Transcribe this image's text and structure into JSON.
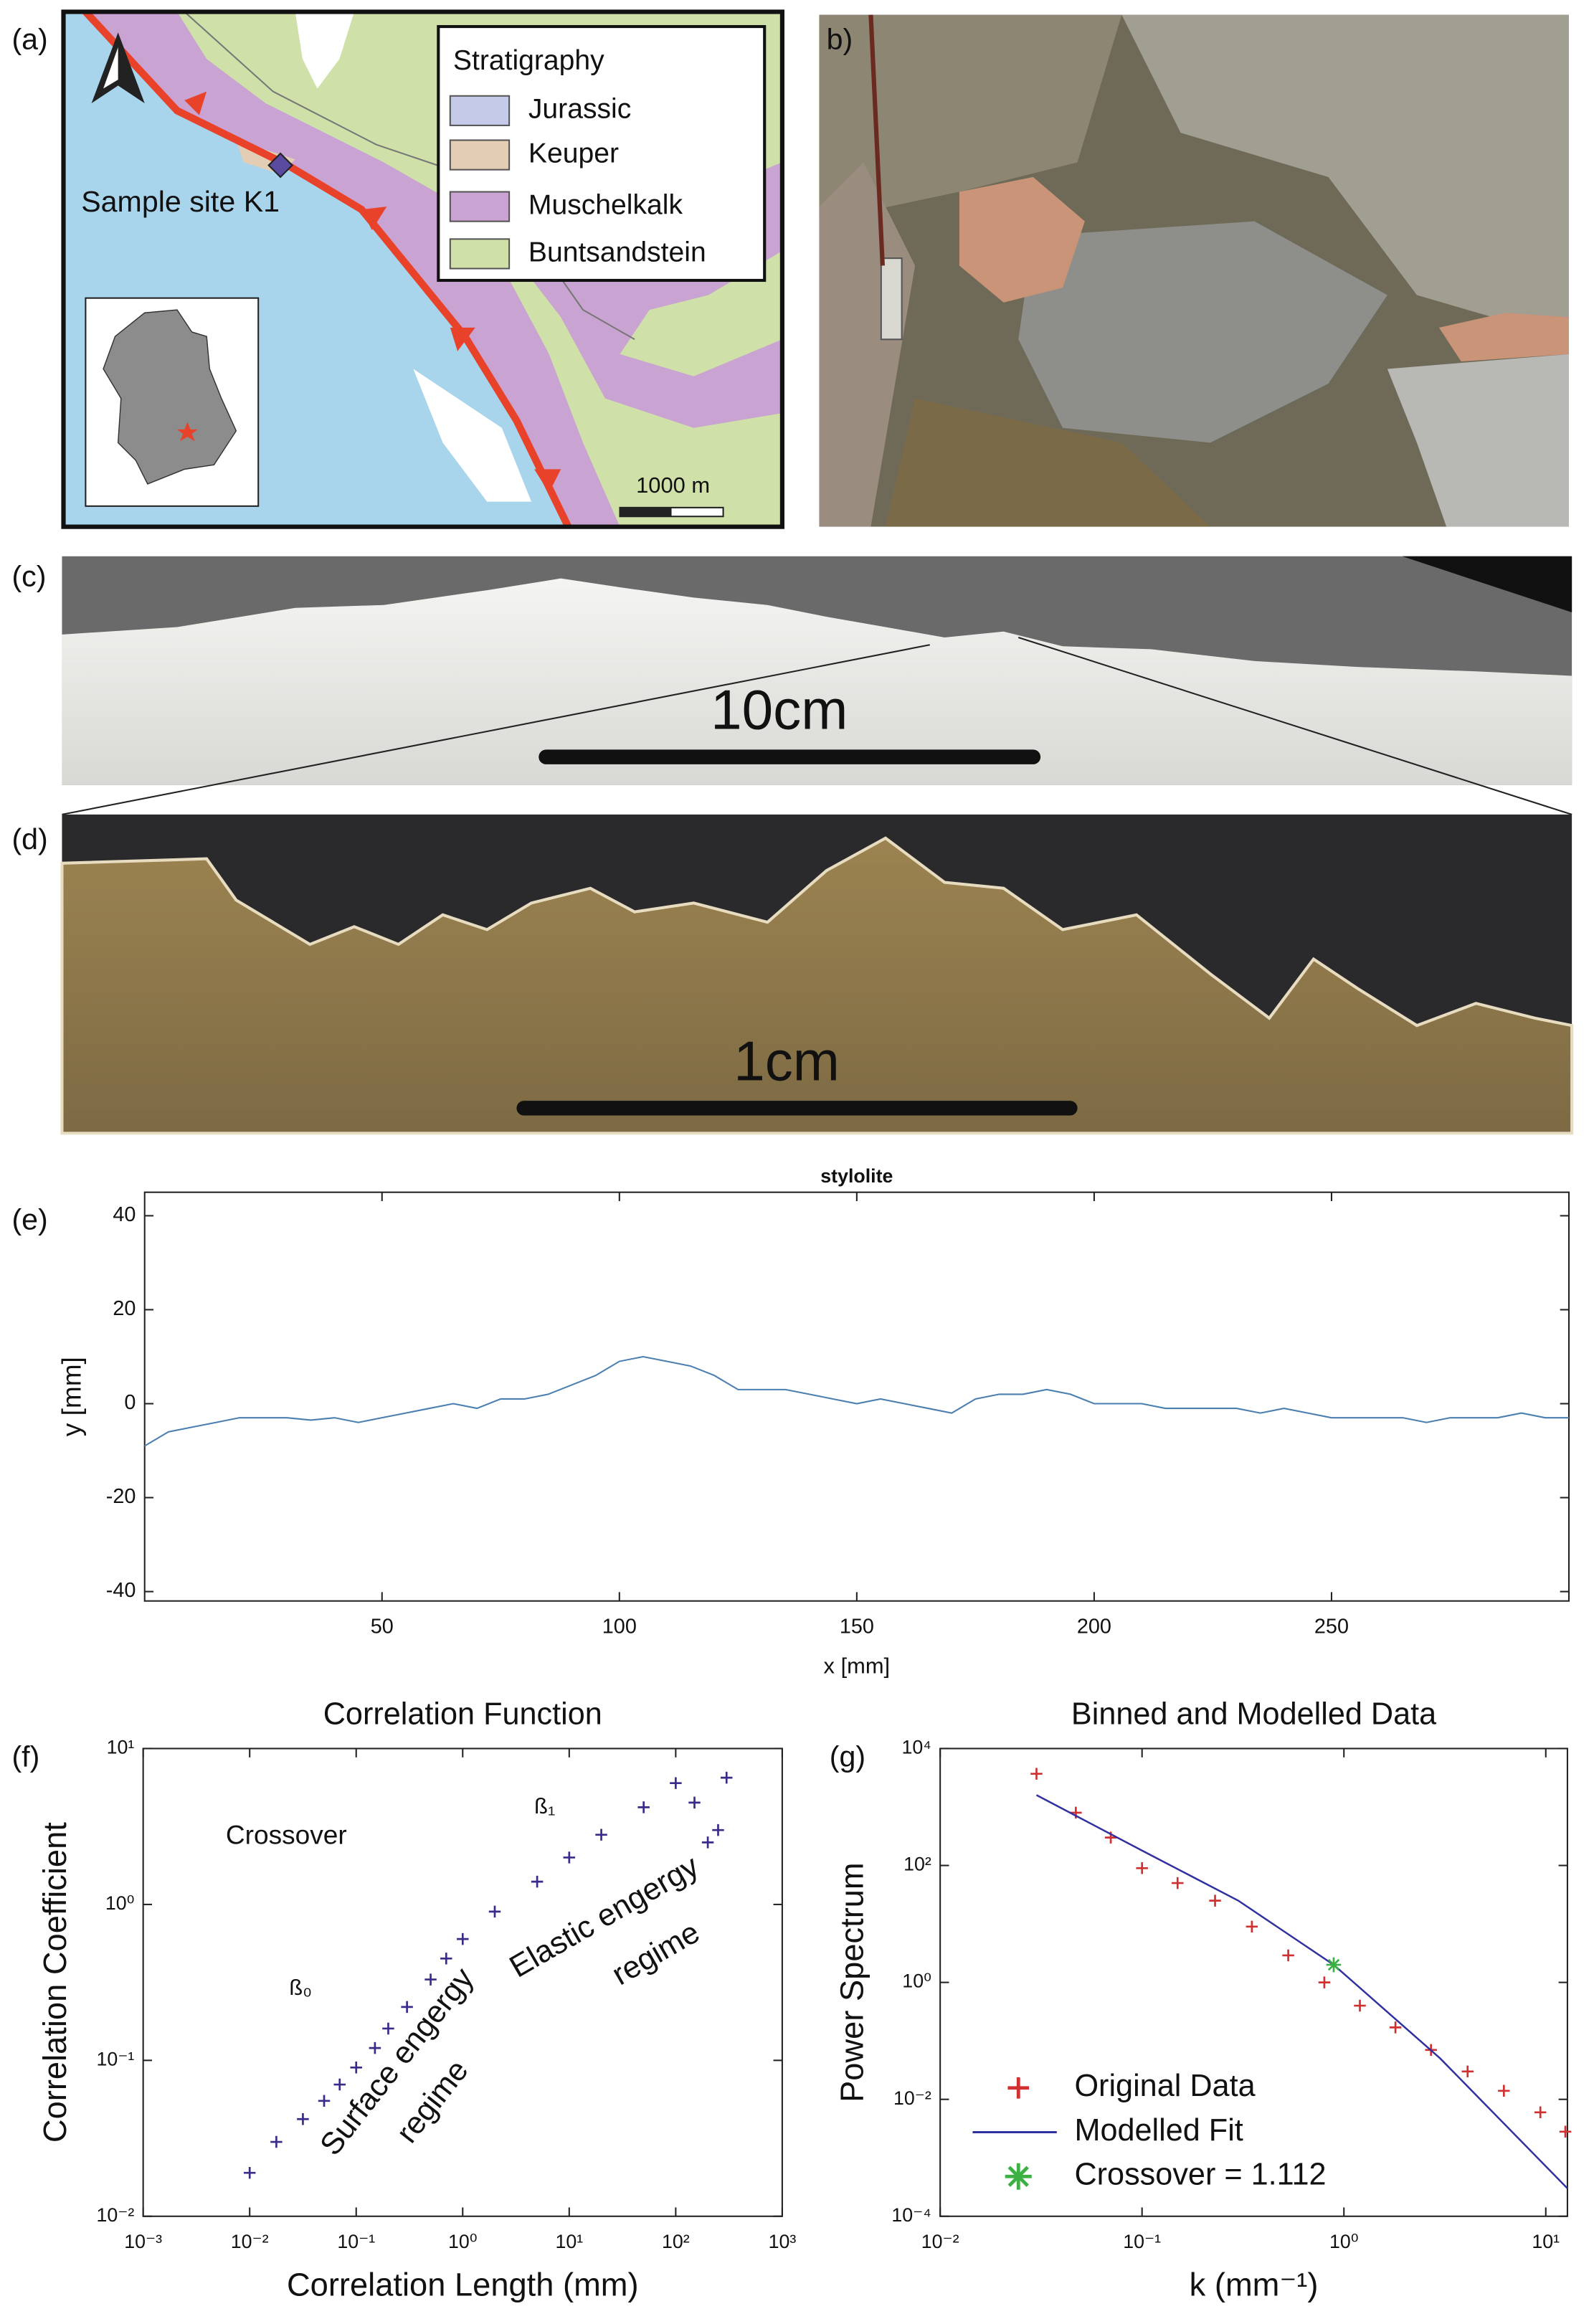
{
  "panels": {
    "a": {
      "label": "(a)",
      "legend_title": "Stratigraphy",
      "legend": [
        {
          "name": "Jurassic",
          "color": "#c5cae9"
        },
        {
          "name": "Keuper",
          "color": "#e3cdb4"
        },
        {
          "name": "Muschelkalk",
          "color": "#c9a3d1"
        },
        {
          "name": "Buntsandstein",
          "color": "#cfe0a8"
        }
      ],
      "site": "Sample site K1",
      "scale": "1000 m"
    },
    "b": {
      "label": "b)"
    },
    "c": {
      "label": "(c)",
      "scale": "10cm"
    },
    "d": {
      "label": "(d)",
      "scale": "1cm"
    },
    "e": {
      "label": "(e)"
    },
    "f": {
      "label": "(f)"
    },
    "g": {
      "label": "(g)"
    }
  },
  "chart_data": [
    {
      "type": "line",
      "title": "stylolite",
      "x_label": "x [mm]",
      "y_label": "y [mm]",
      "color": "#4a7fb0",
      "xlim": [
        0,
        300
      ],
      "ylim": [
        -42,
        45
      ],
      "xticks": [
        50,
        100,
        150,
        200,
        250
      ],
      "yticks": [
        -40,
        -20,
        0,
        20,
        40
      ],
      "x": [
        0,
        5,
        10,
        15,
        20,
        25,
        30,
        35,
        40,
        45,
        50,
        55,
        60,
        65,
        70,
        75,
        80,
        85,
        90,
        95,
        100,
        105,
        110,
        115,
        120,
        125,
        130,
        135,
        140,
        145,
        150,
        155,
        160,
        165,
        170,
        175,
        180,
        185,
        190,
        195,
        200,
        205,
        210,
        215,
        220,
        225,
        230,
        235,
        240,
        245,
        250,
        255,
        260,
        265,
        270,
        275,
        280,
        285,
        290,
        295,
        300
      ],
      "values": [
        -9,
        -6,
        -5,
        -4,
        -3,
        -3,
        -3,
        -3.5,
        -3,
        -4,
        -3,
        -2,
        -1,
        0,
        -1,
        1,
        1,
        2,
        4,
        6,
        9,
        10,
        9,
        8,
        6,
        3,
        3,
        3,
        2,
        1,
        0,
        1,
        0,
        -1,
        -2,
        1,
        2,
        2,
        3,
        2,
        0,
        0,
        0,
        -1,
        -1,
        -1,
        -1,
        -2,
        -1,
        -2,
        -3,
        -3,
        -3,
        -3,
        -4,
        -3,
        -3,
        -3,
        -2,
        -3,
        -3
      ]
    },
    {
      "type": "scatter",
      "title": "Correlation Function",
      "x_label": "Correlation Length (mm)",
      "y_label": "Correlation Coefficient",
      "xscale": "log",
      "yscale": "log",
      "color": "#3a2a8a",
      "marker": "+",
      "xlim": [
        0.001,
        1000
      ],
      "ylim": [
        0.01,
        10
      ],
      "xticks": [
        {
          "value": 0.001,
          "label": "10⁻³"
        },
        {
          "value": 0.01,
          "label": "10⁻²"
        },
        {
          "value": 0.1,
          "label": "10⁻¹"
        },
        {
          "value": 1,
          "label": "10⁰"
        },
        {
          "value": 10,
          "label": "10¹"
        },
        {
          "value": 100,
          "label": "10²"
        },
        {
          "value": 1000,
          "label": "10³"
        }
      ],
      "yticks": [
        {
          "value": 0.01,
          "label": "10⁻²"
        },
        {
          "value": 0.1,
          "label": "10⁻¹"
        },
        {
          "value": 1,
          "label": "10⁰"
        },
        {
          "value": 10,
          "label": "10¹"
        }
      ],
      "x": [
        0.01,
        0.0178,
        0.0316,
        0.05,
        0.07,
        0.1,
        0.15,
        0.2,
        0.3,
        0.5,
        0.7,
        1,
        2,
        5,
        10,
        20,
        50,
        100,
        150,
        200,
        250,
        300
      ],
      "values": [
        0.019,
        0.03,
        0.042,
        0.055,
        0.07,
        0.09,
        0.12,
        0.16,
        0.22,
        0.33,
        0.45,
        0.6,
        0.9,
        1.4,
        2,
        2.8,
        4.2,
        6,
        4.5,
        2.5,
        3,
        6.5
      ],
      "annotations": [
        "Crossover",
        "ß₁",
        "ß₀",
        "Elastic engergy",
        "regime",
        "Surface engergy",
        "regime"
      ]
    },
    {
      "type": "line",
      "title": "Binned and Modelled Data",
      "x_label": "k (mm⁻¹)",
      "y_label": "Power Spectrum",
      "xscale": "log",
      "yscale": "log",
      "xlim": [
        0.01,
        12.8
      ],
      "ylim": [
        0.0001,
        10000
      ],
      "xticks": [
        {
          "value": 0.01,
          "label": "10⁻²"
        },
        {
          "value": 0.1,
          "label": "10⁻¹"
        },
        {
          "value": 1,
          "label": "10⁰"
        },
        {
          "value": 10,
          "label": "10¹"
        }
      ],
      "yticks": [
        {
          "value": 0.0001,
          "label": "10⁻⁴"
        },
        {
          "value": 0.01,
          "label": "10⁻²"
        },
        {
          "value": 1,
          "label": "10⁰"
        },
        {
          "value": 100,
          "label": "10²"
        },
        {
          "value": 10000,
          "label": "10⁴"
        }
      ],
      "series": [
        {
          "name": "Original Data",
          "color": "#d03030",
          "marker": "+",
          "x": [
            0.03,
            0.047,
            0.07,
            0.1,
            0.15,
            0.23,
            0.35,
            0.53,
            0.8,
            1.2,
            1.8,
            2.7,
            4.1,
            6.2,
            9.4,
            12.5
          ],
          "values": [
            3700,
            800,
            300,
            90,
            50,
            25,
            9,
            2.9,
            1,
            0.4,
            0.17,
            0.07,
            0.03,
            0.014,
            0.006,
            0.0028
          ]
        },
        {
          "name": "Modelled Fit",
          "color": "#3030a0",
          "x": [
            0.03,
            0.1,
            0.3,
            0.89,
            3,
            12.8
          ],
          "values": [
            1600,
            180,
            25,
            2,
            0.05,
            0.0003
          ]
        },
        {
          "name": "Crossover = 1.112",
          "color": "#3cb043",
          "marker": "*",
          "x": [
            0.89
          ],
          "values": [
            2
          ]
        }
      ]
    }
  ]
}
